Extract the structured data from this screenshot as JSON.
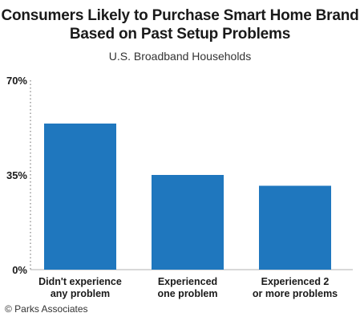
{
  "chart_data": {
    "type": "bar",
    "title": [
      "Consumers Likely to Purchase Smart Home Brand",
      "Based on Past Setup Problems"
    ],
    "subtitle": "U.S. Broadband Households",
    "categories": [
      [
        "Didn't experience",
        "any problem"
      ],
      [
        "Experienced",
        "one problem"
      ],
      [
        "Experienced 2",
        "or more problems"
      ]
    ],
    "values": [
      54,
      35,
      31
    ],
    "ylim": [
      0,
      70
    ],
    "yticks": [
      0,
      35,
      70
    ],
    "ytick_labels": [
      "0%",
      "35%",
      "70%"
    ],
    "bar_color": "#1f77be",
    "grid": false
  },
  "source": "© Parks Associates"
}
